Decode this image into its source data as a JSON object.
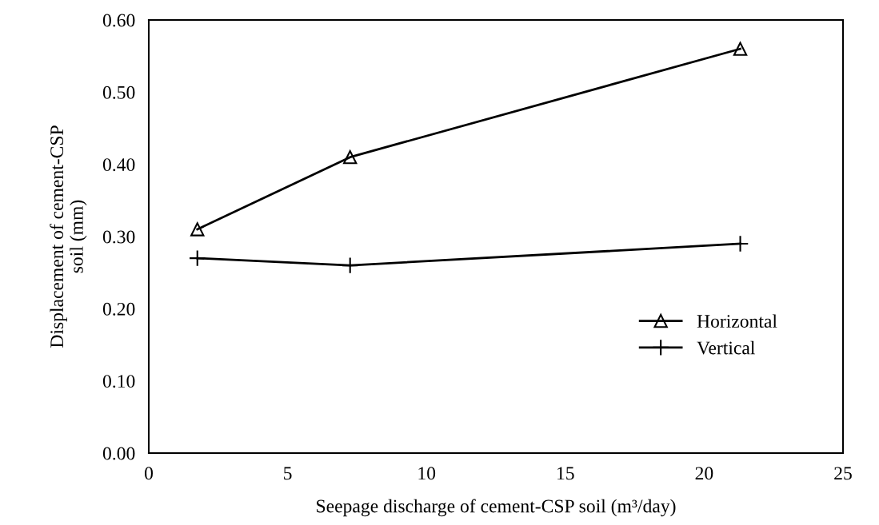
{
  "chart_data": {
    "type": "line",
    "xlabel": "Seepage discharge of cement-CSP soil (m³/day)",
    "ylabel": "Displacement of cement-CSP\nsoil (mm)",
    "x": [
      1.75,
      7.25,
      21.3
    ],
    "series": [
      {
        "name": "Horizontal",
        "color": "#000000",
        "marker": "triangle",
        "values": [
          0.31,
          0.41,
          0.56
        ]
      },
      {
        "name": "Vertical",
        "color": "#000000",
        "marker": "cross",
        "values": [
          0.27,
          0.26,
          0.29
        ]
      }
    ],
    "xlim": [
      0,
      25
    ],
    "xticks": [
      0,
      5,
      10,
      15,
      20,
      25
    ],
    "ylim": [
      0,
      0.6
    ],
    "yticks": [
      {
        "value": 0,
        "label": "0.00"
      },
      {
        "value": 0.1,
        "label": "0.10"
      },
      {
        "value": 0.2,
        "label": "0.20"
      },
      {
        "value": 0.3,
        "label": "0.30"
      },
      {
        "value": 0.4,
        "label": "0.40"
      },
      {
        "value": 0.5,
        "label": "0.50"
      },
      {
        "value": 0.6,
        "label": "0.60"
      }
    ],
    "grid": false,
    "legend": "bottom right",
    "line_style": "solid"
  }
}
